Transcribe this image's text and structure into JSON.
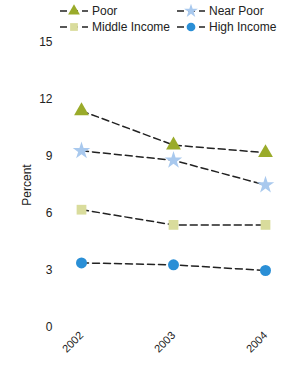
{
  "chart_data": {
    "type": "line",
    "categories": [
      "2002",
      "2003",
      "2004"
    ],
    "y_label": "Percent",
    "ylim": [
      0,
      15
    ],
    "yticks": [
      0,
      3,
      6,
      9,
      12,
      15
    ],
    "line_style": "dashed",
    "series": [
      {
        "name": "Poor",
        "color": "#9aab2a",
        "marker": "triangle",
        "values": [
          11.4,
          9.6,
          9.2
        ]
      },
      {
        "name": "Near Poor",
        "color": "#a9c9ee",
        "marker": "star",
        "values": [
          9.3,
          8.8,
          7.5
        ]
      },
      {
        "name": "Middle Income",
        "color": "#d9dc9c",
        "marker": "square",
        "values": [
          6.2,
          5.4,
          5.4
        ]
      },
      {
        "name": "High Income",
        "color": "#2a8fd6",
        "marker": "circle",
        "values": [
          3.4,
          3.3,
          3.0
        ]
      }
    ]
  }
}
